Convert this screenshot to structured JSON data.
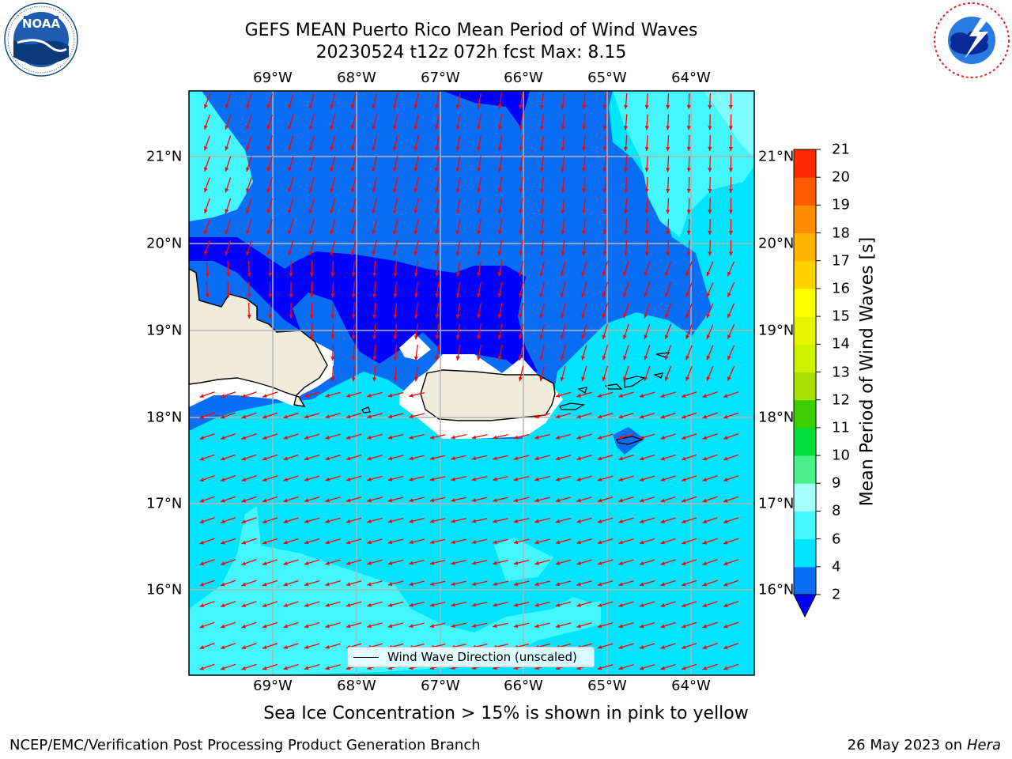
{
  "title": {
    "line1": "GEFS MEAN Puerto Rico Mean Period of Wind Waves",
    "line2": "20230524 t12z 072h fcst   Max: 8.15"
  },
  "logos": {
    "left": "noaa-logo",
    "right": "nws-logo"
  },
  "map": {
    "lon_ticks": [
      "69°W",
      "68°W",
      "67°W",
      "66°W",
      "65°W",
      "64°W"
    ],
    "lat_ticks": [
      "21°N",
      "20°N",
      "19°N",
      "18°N",
      "17°N",
      "16°N"
    ],
    "land_color": "#efecdc",
    "vector_color": "#ff0000",
    "grid_color": "#b4b4b4"
  },
  "legend": {
    "label": "Wind Wave Direction (unscaled)"
  },
  "colorbar": {
    "title": "Mean Period of Wind Waves [s]",
    "ticks": [
      "2",
      "4",
      "6",
      "8",
      "9",
      "10",
      "11",
      "12",
      "13",
      "14",
      "15",
      "16",
      "17",
      "18",
      "19",
      "20",
      "21"
    ],
    "colors": [
      "#0a6ef5",
      "#00e5ff",
      "#44f7ff",
      "#a6ffff",
      "#4cf08a",
      "#00dc3a",
      "#3ccf00",
      "#a8e100",
      "#cdf200",
      "#e8f500",
      "#ffff00",
      "#ffd200",
      "#ffb400",
      "#ff8c00",
      "#ff5a00",
      "#ff2a00"
    ],
    "under_color": "#0000ff"
  },
  "note": "Sea Ice Concentration > 15% is shown in pink to yellow",
  "footer": {
    "left": "NCEP/EMC/Verification Post Processing Product Generation Branch",
    "date": "26 May 2023 on",
    "machine": "Hera"
  }
}
